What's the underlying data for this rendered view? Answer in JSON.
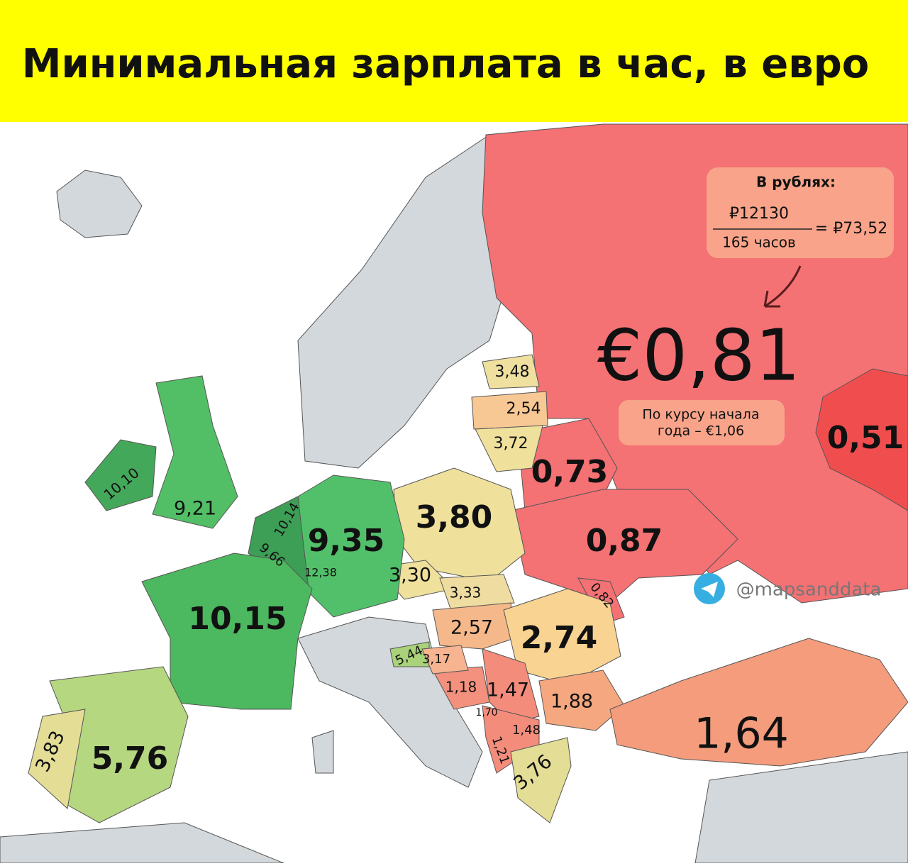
{
  "header": {
    "title": "Минимальная зарплата в час, в евро"
  },
  "rub_note": {
    "title": "В рублях:",
    "numerator": "₽12130",
    "denominator": "165 часов",
    "result": "= ₽73,52"
  },
  "russia": {
    "value": "€0,81",
    "note_lines": [
      "По курсу начала",
      "года – €1,06"
    ]
  },
  "watermark": "@mapsanddata",
  "labels": {
    "kazakhstan": "0,51",
    "belarus": "0,73",
    "ukraine": "0,87",
    "moldova": "0,82",
    "estonia": "3,48",
    "latvia": "2,54",
    "lithuania": "3,72",
    "poland": "3,80",
    "czechia": "3,30",
    "slovakia": "3,33",
    "hungary": "2,57",
    "romania": "2,74",
    "bulgaria": "1,88",
    "serbia": "1,47",
    "bosnia": "1,18",
    "montenegro": "1,70",
    "north_macedonia": "1,48",
    "albania": "1,21",
    "greece": "3,76",
    "turkey": "1,64",
    "slovenia": "5,44",
    "croatia": "3,17",
    "germany": "9,35",
    "luxembourg": "12,38",
    "netherlands": "10,14",
    "belgium": "9,66",
    "france": "10,15",
    "uk": "9,21",
    "ireland": "10,10",
    "spain": "5,76",
    "portugal": "3,83"
  }
}
